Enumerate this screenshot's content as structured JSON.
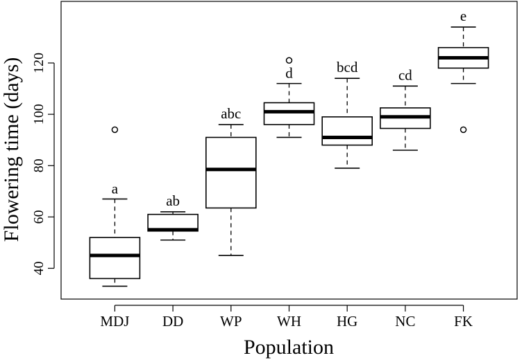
{
  "chart_data": {
    "type": "boxplot",
    "title": "",
    "xlabel": "Population",
    "ylabel": "Flowering time (days)",
    "ylim": [
      28,
      144
    ],
    "yticks": [
      40,
      60,
      80,
      100,
      120
    ],
    "grid": false,
    "legend": "none",
    "categories": [
      "MDJ",
      "DD",
      "WP",
      "WH",
      "HG",
      "NC",
      "FK"
    ],
    "boxes": [
      {
        "category": "MDJ",
        "whisker_low": 33,
        "q1": 36,
        "median": 45,
        "q3": 52,
        "whisker_high": 67,
        "outliers": [
          94
        ],
        "letter": "a"
      },
      {
        "category": "DD",
        "whisker_low": 51,
        "q1": 54.5,
        "median": 55,
        "q3": 61,
        "whisker_high": 62,
        "outliers": [],
        "letter": "ab"
      },
      {
        "category": "WP",
        "whisker_low": 45,
        "q1": 63.5,
        "median": 78.5,
        "q3": 91,
        "whisker_high": 96,
        "outliers": [],
        "letter": "abc"
      },
      {
        "category": "WH",
        "whisker_low": 91,
        "q1": 96,
        "median": 101,
        "q3": 104.5,
        "whisker_high": 112,
        "outliers": [
          121
        ],
        "letter": "d"
      },
      {
        "category": "HG",
        "whisker_low": 79,
        "q1": 88,
        "median": 91,
        "q3": 99,
        "whisker_high": 114,
        "outliers": [],
        "letter": "bcd"
      },
      {
        "category": "NC",
        "whisker_low": 86,
        "q1": 94.5,
        "median": 99,
        "q3": 102.5,
        "whisker_high": 111,
        "outliers": [],
        "letter": "cd"
      },
      {
        "category": "FK",
        "whisker_low": 112,
        "q1": 118,
        "median": 122,
        "q3": 126,
        "whisker_high": 134,
        "outliers": [
          94
        ],
        "letter": "e"
      }
    ],
    "colors": {
      "box_fill": "#ffffff",
      "stroke": "#000000"
    }
  }
}
